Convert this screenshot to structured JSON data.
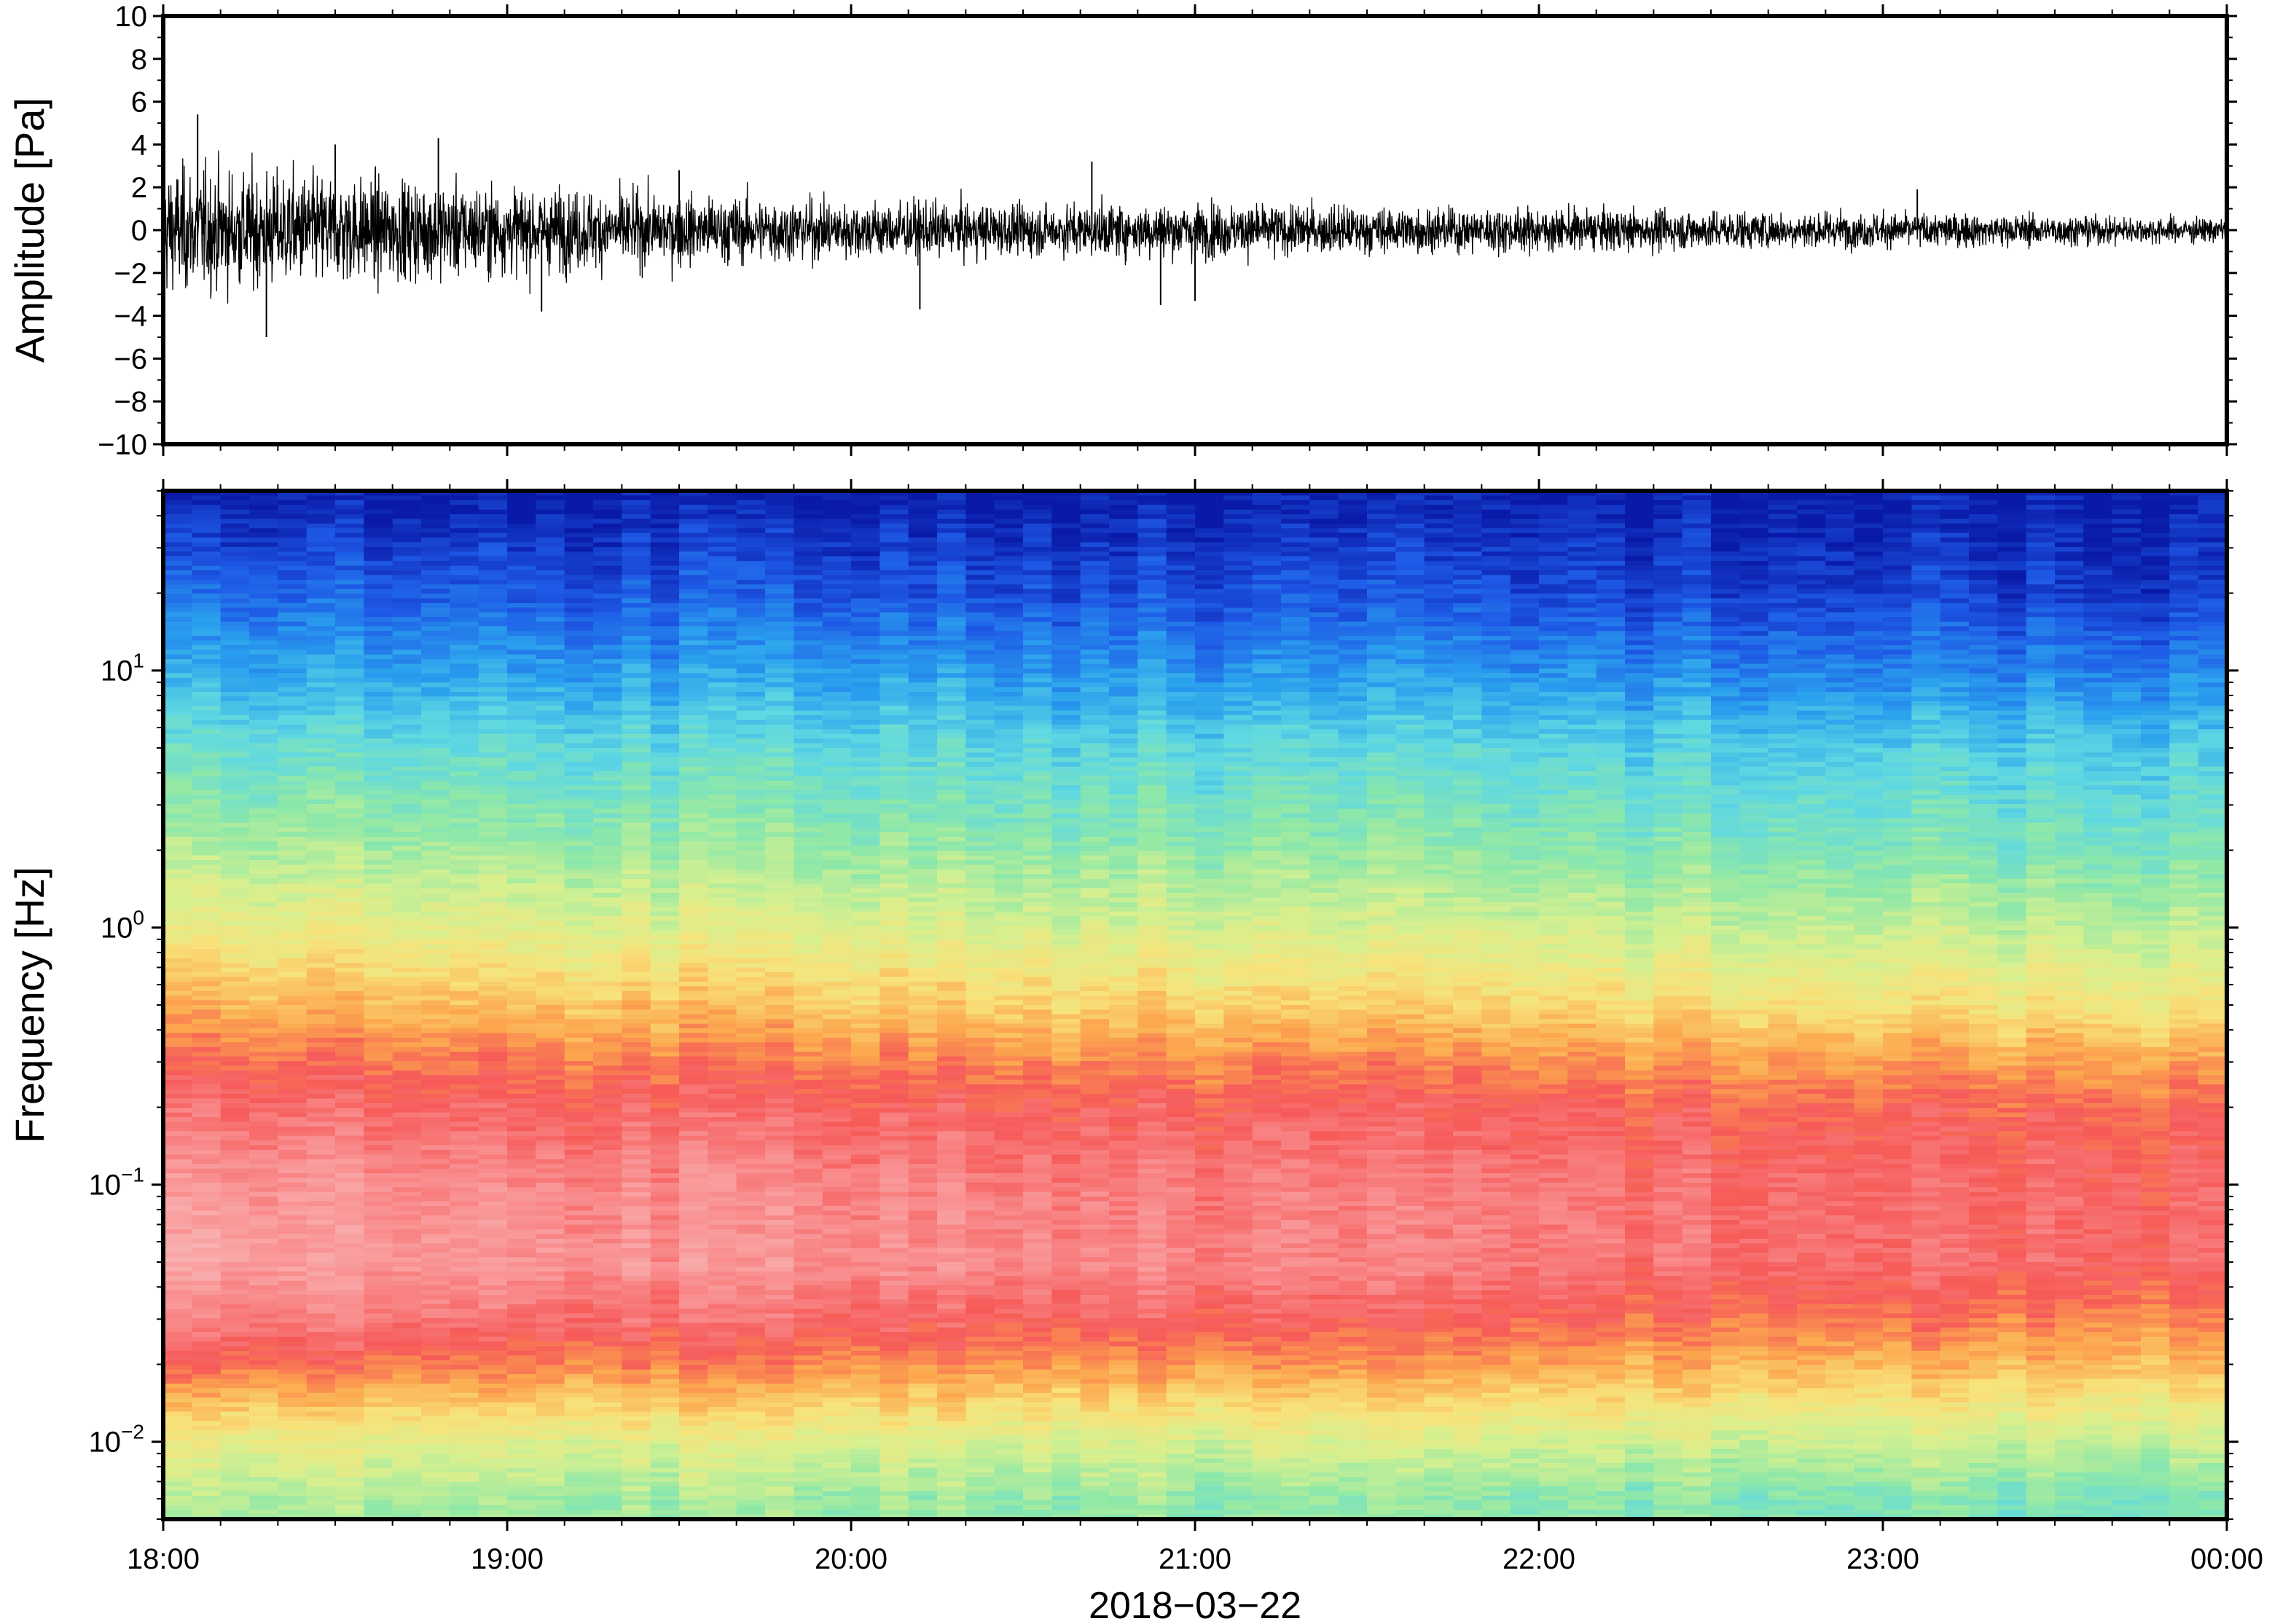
{
  "chart_data": [
    {
      "type": "line",
      "panel": "waveform",
      "ylabel": "Amplitude [Pa]",
      "ylim": [
        -10,
        10
      ],
      "yticks": [
        10,
        8,
        6,
        4,
        2,
        0,
        -2,
        -4,
        -6,
        -8,
        -10
      ],
      "ytick_labels": [
        "10",
        "8",
        "6",
        "4",
        "2",
        "0",
        "−2",
        "−4",
        "−6",
        "−8",
        "−10"
      ],
      "x_range": [
        "18:00",
        "00:00"
      ],
      "envelope_hours": [
        0,
        0.5,
        1,
        1.5,
        2,
        2.5,
        3,
        3.5,
        4,
        4.5,
        5,
        5.5,
        6
      ],
      "envelope_amplitude": [
        3.2,
        2.8,
        2.2,
        1.8,
        1.5,
        1.3,
        1.4,
        1.2,
        1.1,
        1.0,
        0.9,
        0.8,
        0.6
      ],
      "peak_amplitudes": [
        [
          0.1,
          5.4
        ],
        [
          0.3,
          -5.0
        ],
        [
          0.5,
          4.0
        ],
        [
          0.8,
          4.3
        ],
        [
          1.1,
          -3.8
        ],
        [
          1.5,
          2.8
        ],
        [
          2.2,
          -3.7
        ],
        [
          2.7,
          3.2
        ],
        [
          2.9,
          -3.5
        ],
        [
          3.0,
          -3.3
        ],
        [
          5.1,
          1.9
        ]
      ],
      "color": "#000000"
    },
    {
      "type": "heatmap",
      "panel": "spectrogram",
      "ylabel": "Frequency [Hz]",
      "yscale": "log",
      "ylim": [
        0.005,
        50
      ],
      "yticks": [
        0.01,
        0.1,
        1,
        10
      ],
      "ytick_labels": [
        {
          "base": "10",
          "exp": "−2"
        },
        {
          "base": "10",
          "exp": "−1"
        },
        {
          "base": "10",
          "exp": "0"
        },
        {
          "base": "10",
          "exp": "1"
        }
      ],
      "xticks": [
        "18:00",
        "19:00",
        "20:00",
        "21:00",
        "22:00",
        "23:00",
        "00:00"
      ],
      "xlabel": "2018−03−22",
      "colormap": [
        "#0a1aa8",
        "#1e5ae6",
        "#2aa0ee",
        "#5fd8e2",
        "#8ee8a8",
        "#d6f090",
        "#f8e27a",
        "#fca84e",
        "#f65a58",
        "#f98d8e",
        "#f9b6b6"
      ],
      "power_profile_comment_free": true,
      "power_profile_freq_hz": [
        50,
        20,
        10,
        5,
        2,
        1,
        0.5,
        0.3,
        0.2,
        0.1,
        0.05,
        0.03,
        0.02,
        0.01,
        0.006
      ],
      "power_profile_start": [
        0.0,
        0.12,
        0.22,
        0.33,
        0.45,
        0.55,
        0.68,
        0.78,
        0.84,
        0.92,
        0.95,
        0.88,
        0.78,
        0.55,
        0.45
      ],
      "power_profile_end": [
        0.0,
        0.05,
        0.15,
        0.27,
        0.36,
        0.46,
        0.58,
        0.7,
        0.78,
        0.82,
        0.82,
        0.74,
        0.66,
        0.48,
        0.36
      ]
    }
  ]
}
